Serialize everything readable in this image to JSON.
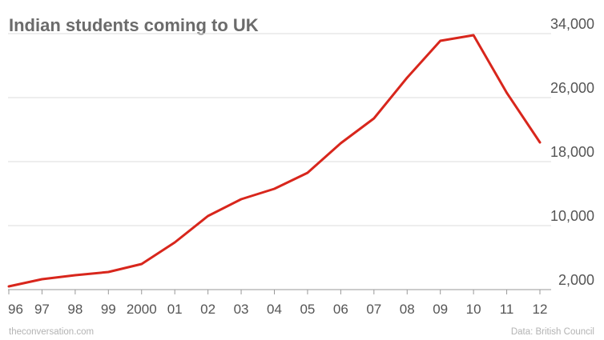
{
  "chart_data": {
    "type": "line",
    "title": "Indian students coming to UK",
    "categories": [
      "96",
      "97",
      "98",
      "99",
      "2000",
      "01",
      "02",
      "03",
      "04",
      "05",
      "06",
      "07",
      "08",
      "09",
      "10",
      "11",
      "12"
    ],
    "series": [
      {
        "values": [
          2400,
          3300,
          3800,
          4200,
          5200,
          7900,
          11200,
          13300,
          14600,
          16600,
          20300,
          23400,
          28500,
          33100,
          33800,
          26600,
          20400
        ]
      }
    ],
    "y_ticks": [
      "2,000",
      "10,000",
      "18,000",
      "26,000",
      "34,000"
    ],
    "ylim": [
      2000,
      34000
    ],
    "xlabel": "",
    "ylabel": "",
    "grid": true,
    "y_axis_side": "right",
    "line_color": "#d8261c",
    "grid_color": "#dddddd",
    "source_left": "theconversation.com",
    "source_right": "Data: British Council"
  }
}
